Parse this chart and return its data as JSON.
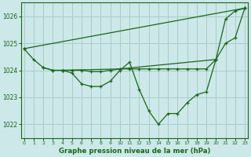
{
  "background_color": "#cce8e8",
  "grid_color": "#aacccc",
  "line_color": "#1a6618",
  "title": "Graphe pression niveau de la mer (hPa)",
  "ylim": [
    1021.5,
    1026.5
  ],
  "yticks": [
    1022,
    1023,
    1024,
    1025,
    1026
  ],
  "xlim": [
    -0.3,
    23.3
  ],
  "xticks": [
    0,
    1,
    2,
    3,
    4,
    5,
    6,
    7,
    8,
    9,
    10,
    11,
    12,
    13,
    14,
    15,
    16,
    17,
    18,
    19,
    20,
    21,
    22,
    23
  ],
  "series": [
    {
      "x": [
        0,
        1,
        2,
        3,
        4,
        5,
        6,
        7,
        8,
        9,
        10,
        11,
        12,
        13,
        14,
        15,
        16,
        17,
        18,
        19,
        20,
        21,
        22,
        23
      ],
      "y": [
        1024.8,
        1024.4,
        1024.1,
        1024.0,
        1024.0,
        1023.9,
        1023.5,
        1023.4,
        1023.4,
        1023.6,
        1024.0,
        1024.3,
        1023.3,
        1022.5,
        1022.0,
        1022.4,
        1022.4,
        1022.8,
        1023.1,
        1023.2,
        1024.4,
        1025.9,
        1026.2,
        1026.3
      ]
    },
    {
      "x": [
        0,
        23
      ],
      "y": [
        1024.8,
        1026.3
      ]
    },
    {
      "x": [
        2,
        3,
        4,
        5,
        6,
        7,
        8,
        9,
        10,
        11,
        12,
        13,
        14,
        15,
        16,
        17,
        18,
        19,
        20
      ],
      "y": [
        1024.1,
        1024.0,
        1024.0,
        1024.0,
        1024.0,
        1023.95,
        1023.95,
        1024.0,
        1024.05,
        1024.05,
        1024.05,
        1024.05,
        1024.05,
        1024.05,
        1024.05,
        1024.05,
        1024.05,
        1024.05,
        1024.4
      ]
    },
    {
      "x": [
        4,
        10,
        20,
        21,
        22,
        23
      ],
      "y": [
        1024.0,
        1024.05,
        1024.4,
        1025.0,
        1025.2,
        1026.3
      ]
    }
  ]
}
